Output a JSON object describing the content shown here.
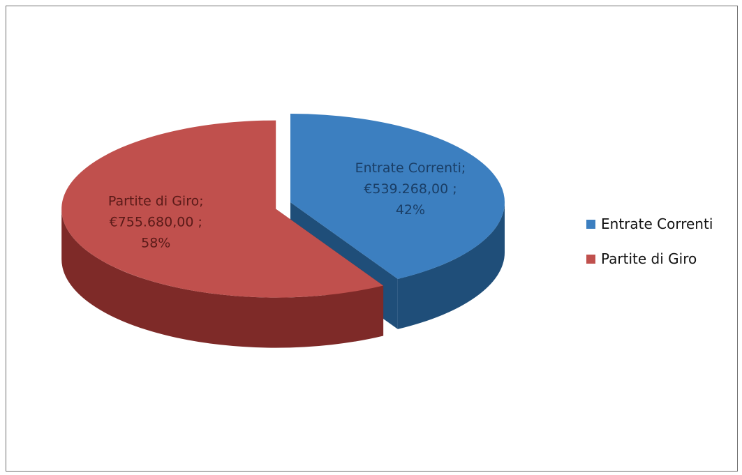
{
  "chart_data": {
    "type": "pie",
    "title": "",
    "three_d": true,
    "exploded_slice": "Entrate Correnti",
    "legend_position": "right",
    "slices": [
      {
        "name": "Entrate Correnti",
        "value": 539268.0,
        "percent": 42,
        "value_label": "€539.268,00",
        "percent_label": "42%",
        "color": "#3C7FC0",
        "side_color": "#1F4E79",
        "label_color": "#1A3E66"
      },
      {
        "name": "Partite di Giro",
        "value": 755680.0,
        "percent": 58,
        "value_label": "€755.680,00",
        "percent_label": "58%",
        "color": "#C0504D",
        "side_color": "#7E2A28",
        "label_color": "#5A1A18"
      }
    ]
  }
}
